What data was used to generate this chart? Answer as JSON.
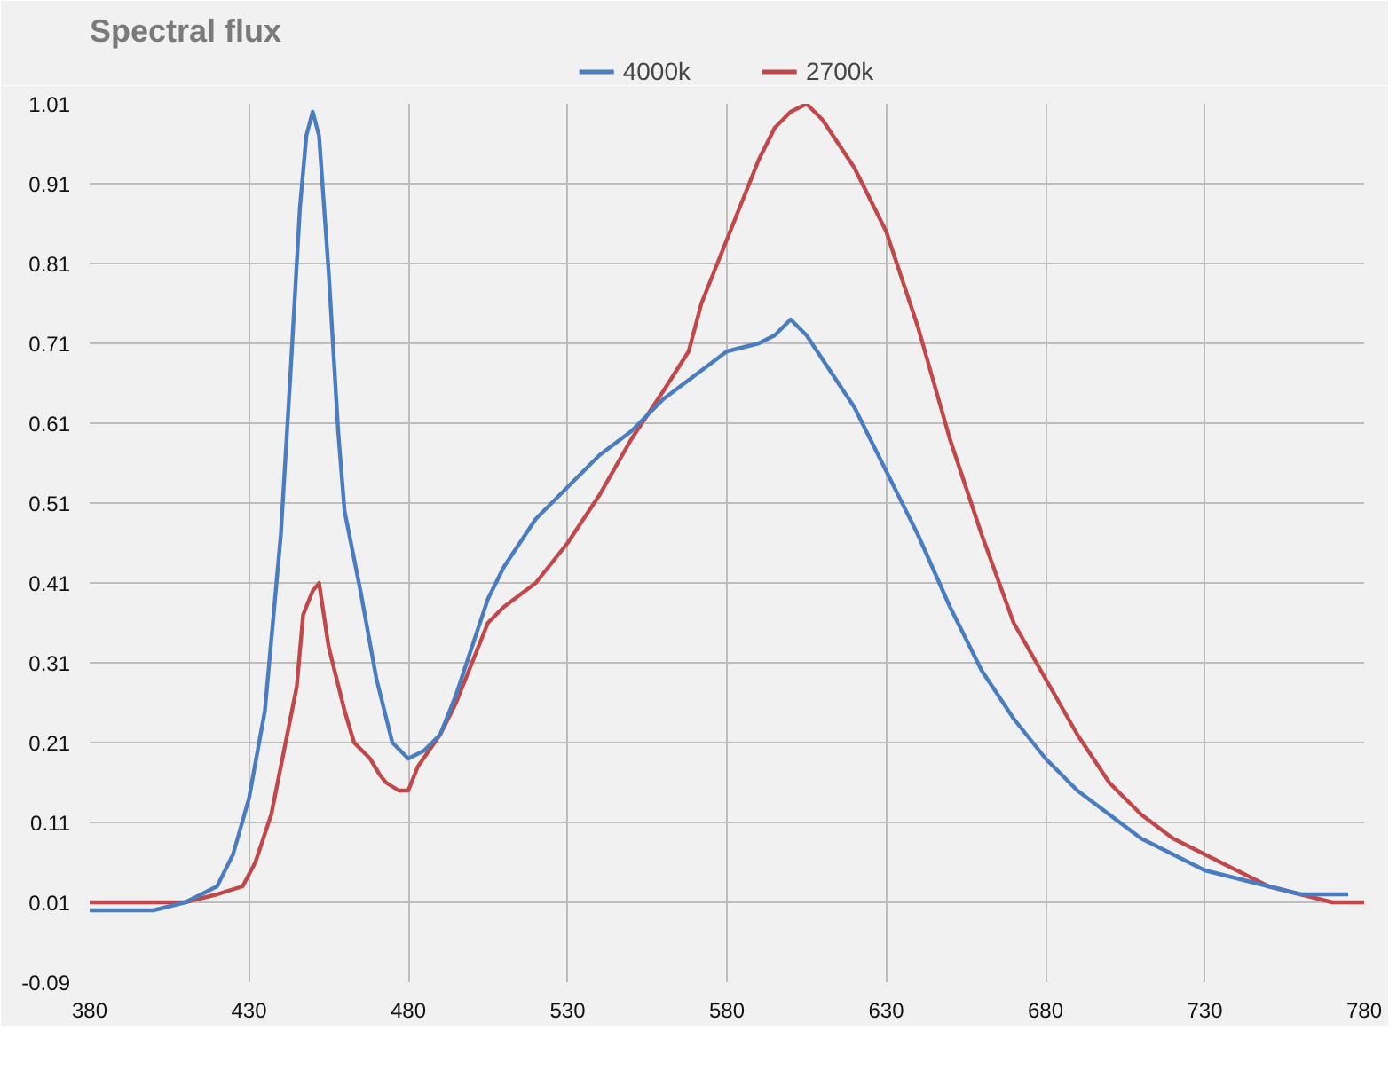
{
  "chart_data": {
    "type": "line",
    "title": "Spectral flux",
    "xlim": [
      380,
      780
    ],
    "xticks": [
      380,
      430,
      480,
      530,
      580,
      630,
      680,
      730,
      780
    ],
    "ylim": [
      -0.09,
      1.01
    ],
    "yticks": [
      -0.09,
      0.01,
      0.11,
      0.21,
      0.31,
      0.41,
      0.51,
      0.61,
      0.71,
      0.81,
      0.91,
      1.01
    ],
    "grid": true,
    "legend": "top",
    "line_style": "solid",
    "series": [
      {
        "name": "4000k",
        "color": "#4a7cc0",
        "x": [
          380,
          390,
          400,
          410,
          415,
          420,
          425,
          430,
          435,
          440,
          443,
          446,
          448,
          450,
          452,
          455,
          458,
          460,
          465,
          470,
          475,
          480,
          485,
          490,
          495,
          500,
          505,
          510,
          520,
          530,
          540,
          550,
          560,
          570,
          580,
          590,
          595,
          600,
          605,
          610,
          620,
          630,
          640,
          650,
          660,
          670,
          680,
          690,
          700,
          710,
          720,
          730,
          740,
          750,
          760,
          770,
          775
        ],
        "values": [
          0.0,
          0.0,
          0.0,
          0.01,
          0.02,
          0.03,
          0.07,
          0.14,
          0.25,
          0.47,
          0.67,
          0.88,
          0.97,
          1.0,
          0.97,
          0.8,
          0.6,
          0.5,
          0.4,
          0.29,
          0.21,
          0.19,
          0.2,
          0.22,
          0.27,
          0.33,
          0.39,
          0.43,
          0.49,
          0.53,
          0.57,
          0.6,
          0.64,
          0.67,
          0.7,
          0.71,
          0.72,
          0.74,
          0.72,
          0.69,
          0.63,
          0.55,
          0.47,
          0.38,
          0.3,
          0.24,
          0.19,
          0.15,
          0.12,
          0.09,
          0.07,
          0.05,
          0.04,
          0.03,
          0.02,
          0.02,
          0.02
        ]
      },
      {
        "name": "2700k",
        "color": "#c0474a",
        "x": [
          380,
          390,
          400,
          410,
          420,
          428,
          432,
          437,
          441,
          445,
          447,
          450,
          452,
          455,
          460,
          463,
          468,
          471,
          473,
          477,
          480,
          483,
          490,
          495,
          500,
          505,
          510,
          520,
          530,
          540,
          550,
          560,
          568,
          572,
          575,
          580,
          585,
          590,
          595,
          600,
          605,
          610,
          615,
          620,
          630,
          640,
          650,
          660,
          670,
          680,
          690,
          700,
          710,
          720,
          730,
          740,
          750,
          760,
          770,
          780
        ],
        "values": [
          0.01,
          0.01,
          0.01,
          0.01,
          0.02,
          0.03,
          0.06,
          0.12,
          0.2,
          0.28,
          0.37,
          0.4,
          0.41,
          0.33,
          0.25,
          0.21,
          0.19,
          0.17,
          0.16,
          0.15,
          0.15,
          0.18,
          0.22,
          0.26,
          0.31,
          0.36,
          0.38,
          0.41,
          0.46,
          0.52,
          0.59,
          0.65,
          0.7,
          0.76,
          0.79,
          0.84,
          0.89,
          0.94,
          0.98,
          1.0,
          1.01,
          0.99,
          0.96,
          0.93,
          0.85,
          0.73,
          0.59,
          0.47,
          0.36,
          0.29,
          0.22,
          0.16,
          0.12,
          0.09,
          0.07,
          0.05,
          0.03,
          0.02,
          0.01,
          0.01
        ]
      }
    ]
  }
}
